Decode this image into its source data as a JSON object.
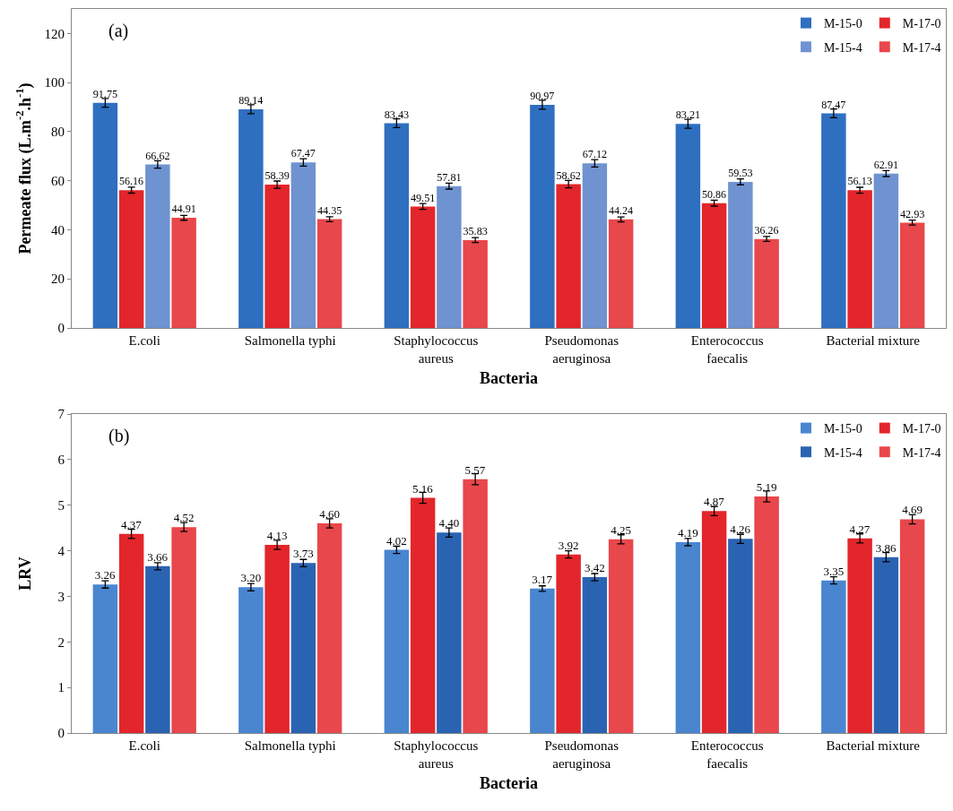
{
  "chart_data": [
    {
      "type": "bar",
      "annotations": [
        "(a)"
      ],
      "xlabel": "Bacteria",
      "ylabel": "Permeate flux (L.m$^{-2}$.h$^{-1}$)",
      "categories": [
        "E.coli",
        "Salmonella typhi",
        "Staphylococcus\naureus",
        "Pseudomonas\naeruginosa",
        "Enterococcus\nfaecalis",
        "Bacterial mixture"
      ],
      "series": [
        {
          "name": "M-15-0",
          "color": "#2f6fc0",
          "values": [
            91.75,
            89.14,
            83.43,
            90.97,
            83.21,
            87.47
          ],
          "errors": [
            1.8,
            1.8,
            1.8,
            1.8,
            1.8,
            1.8
          ]
        },
        {
          "name": "M-17-0",
          "color": "#e3262b",
          "values": [
            56.16,
            58.39,
            49.51,
            58.62,
            50.86,
            56.13
          ],
          "errors": [
            1.2,
            1.5,
            1.2,
            1.5,
            1.2,
            1.2
          ]
        },
        {
          "name": "M-15-4",
          "color": "#6f93d0",
          "values": [
            66.62,
            67.47,
            57.81,
            67.12,
            59.53,
            62.91
          ],
          "errors": [
            1.5,
            1.5,
            1.2,
            1.5,
            1.2,
            1.2
          ]
        },
        {
          "name": "M-17-4",
          "color": "#e8474b",
          "values": [
            44.91,
            44.35,
            35.83,
            44.24,
            36.26,
            42.93
          ],
          "errors": [
            1,
            1,
            1,
            1,
            1,
            1
          ]
        }
      ],
      "ylim": [
        0,
        130
      ],
      "yticks": [
        0,
        20,
        40,
        60,
        80,
        100,
        120
      ],
      "grid": false,
      "legend": "top right",
      "data_labels": true
    },
    {
      "type": "bar",
      "annotations": [
        "(b)"
      ],
      "xlabel": "Bacteria",
      "ylabel": "LRV",
      "categories": [
        "E.coli",
        "Salmonella typhi",
        "Staphylococcus\naureus",
        "Pseudomonas\naeruginosa",
        "Enterococcus\nfaecalis",
        "Bacterial mixture"
      ],
      "series": [
        {
          "name": "M-15-0",
          "color": "#4a86d0",
          "values": [
            3.26,
            3.2,
            4.02,
            3.17,
            4.19,
            3.35
          ],
          "value_labels": [
            "3.26",
            "3.20",
            "4.02",
            "3.17",
            "4.19",
            "3.35"
          ],
          "errors": [
            0.08,
            0.08,
            0.08,
            0.06,
            0.08,
            0.08
          ]
        },
        {
          "name": "M-17-0",
          "color": "#e3262b",
          "values": [
            4.37,
            4.13,
            5.16,
            3.92,
            4.87,
            4.27
          ],
          "value_labels": [
            "4.37",
            "4.13",
            "5.16",
            "3.92",
            "4.87",
            "4.27"
          ],
          "errors": [
            0.1,
            0.1,
            0.12,
            0.08,
            0.1,
            0.1
          ]
        },
        {
          "name": "M-15-4",
          "color": "#2b63b3",
          "values": [
            3.66,
            3.73,
            4.4,
            3.42,
            4.26,
            3.86
          ],
          "value_labels": [
            "3.66",
            "3.73",
            "4.40",
            "3.42",
            "4.26",
            "3.86"
          ],
          "errors": [
            0.08,
            0.08,
            0.1,
            0.08,
            0.1,
            0.1
          ]
        },
        {
          "name": "M-17-4",
          "color": "#e8474b",
          "values": [
            4.52,
            4.6,
            5.57,
            4.25,
            5.19,
            4.69
          ],
          "value_labels": [
            "4.52",
            "4.60",
            "5.57",
            "4.25",
            "5.19",
            "4.69"
          ],
          "errors": [
            0.1,
            0.1,
            0.12,
            0.1,
            0.12,
            0.1
          ]
        }
      ],
      "ylim": [
        0,
        7
      ],
      "yticks": [
        0,
        1,
        2,
        3,
        4,
        5,
        6,
        7
      ],
      "grid": false,
      "legend": "top right"
    }
  ]
}
